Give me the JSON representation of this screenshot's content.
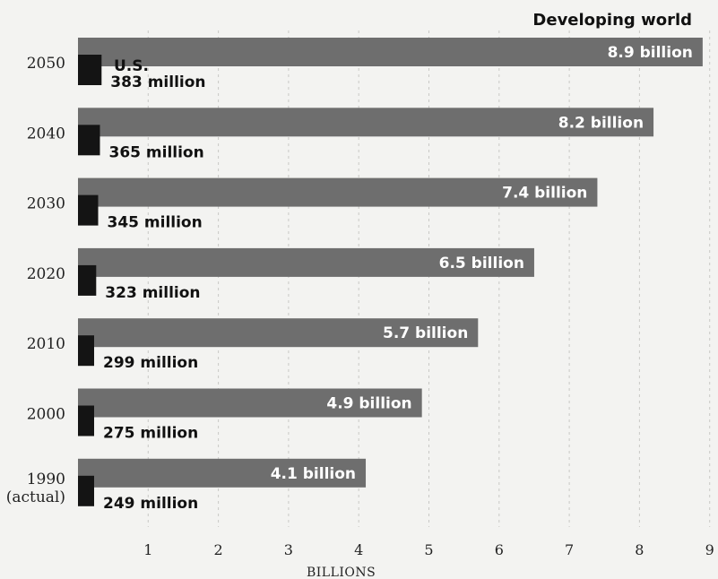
{
  "chart_data": {
    "type": "bar",
    "orientation": "horizontal",
    "categories": [
      "2050",
      "2040",
      "2030",
      "2020",
      "2010",
      "2000",
      "1990\n(actual)"
    ],
    "series": [
      {
        "name": "Developing world",
        "values": [
          8.9,
          8.2,
          7.4,
          6.5,
          5.7,
          4.9,
          4.1
        ],
        "labels": [
          "8.9 billion",
          "8.2 billion",
          "7.4 billion",
          "6.5 billion",
          "5.7 billion",
          "4.9 billion",
          "4.1 billion"
        ],
        "color": "#6e6e6e"
      },
      {
        "name": "U.S.",
        "values": [
          0.383,
          0.365,
          0.345,
          0.323,
          0.299,
          0.275,
          0.249
        ],
        "labels": [
          "383 million",
          "365 million",
          "345 million",
          "323 million",
          "299 million",
          "275 million",
          "249 million"
        ],
        "color": "#141414"
      }
    ],
    "x_ticks": [
      1,
      2,
      3,
      4,
      5,
      6,
      7,
      8,
      9
    ],
    "xlabel": "BILLIONS",
    "xlim": [
      0,
      9
    ],
    "grid": "vertical-dashed",
    "legend": "inline"
  }
}
